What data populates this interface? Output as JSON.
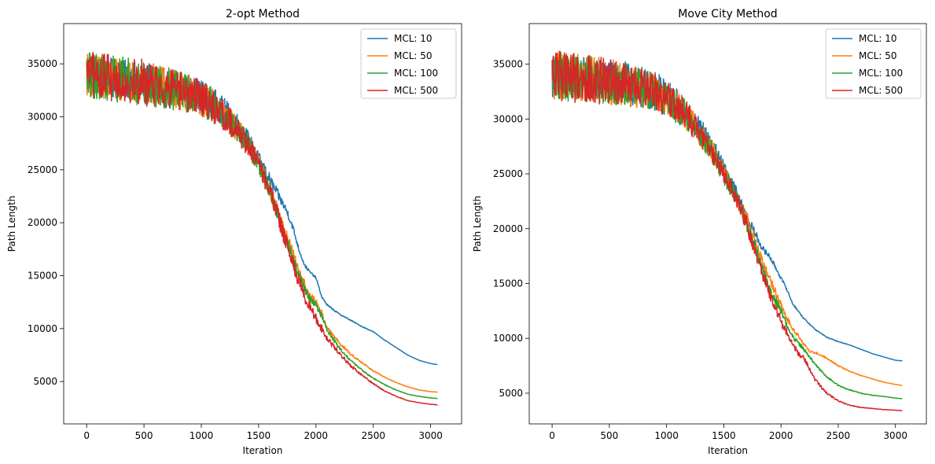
{
  "chart_data": [
    {
      "type": "line",
      "title": "2-opt Method",
      "xlabel": "Iteration",
      "ylabel": "Path Length",
      "xlim": [
        -200,
        3270
      ],
      "ylim": [
        1000,
        38800
      ],
      "xticks": [
        0,
        500,
        1000,
        1500,
        2000,
        2500,
        3000
      ],
      "yticks": [
        5000,
        10000,
        15000,
        20000,
        25000,
        30000,
        35000
      ],
      "grid": false,
      "legend_position": "top-right",
      "series": [
        {
          "name": "MCL: 10",
          "color": "#1f77b4",
          "x": [
            0,
            100,
            200,
            300,
            400,
            500,
            600,
            700,
            800,
            900,
            1000,
            1100,
            1200,
            1300,
            1400,
            1500,
            1600,
            1700,
            1750,
            1800,
            1850,
            1900,
            1950,
            2000,
            2050,
            2100,
            2200,
            2300,
            2400,
            2500,
            2600,
            2700,
            2800,
            2900,
            3000,
            3060
          ],
          "y": [
            34000,
            33800,
            33700,
            33500,
            33400,
            33200,
            33000,
            32700,
            32500,
            32300,
            32000,
            31300,
            30500,
            29500,
            28000,
            26000,
            24000,
            22000,
            21000,
            19500,
            17500,
            16000,
            15300,
            14800,
            13000,
            12200,
            11400,
            10800,
            10200,
            9700,
            8900,
            8200,
            7500,
            7000,
            6700,
            6600
          ],
          "amp": [
            1900,
            1900,
            1900,
            1900,
            1900,
            1900,
            1900,
            1800,
            1800,
            1700,
            1600,
            1500,
            1300,
            1100,
            900,
            700,
            600,
            450,
            400,
            300,
            200,
            150,
            120,
            100,
            90,
            80,
            60,
            50,
            40,
            30,
            20,
            15,
            10,
            10,
            10,
            5
          ]
        },
        {
          "name": "MCL: 50",
          "color": "#ff7f0e",
          "x": [
            0,
            100,
            200,
            300,
            400,
            500,
            600,
            700,
            800,
            900,
            1000,
            1100,
            1200,
            1300,
            1400,
            1500,
            1600,
            1700,
            1800,
            1850,
            1900,
            1950,
            2000,
            2050,
            2100,
            2200,
            2300,
            2400,
            2500,
            2600,
            2700,
            2800,
            2900,
            3000,
            3060
          ],
          "y": [
            34000,
            33800,
            33700,
            33500,
            33400,
            33200,
            33000,
            32700,
            32400,
            32200,
            31800,
            31000,
            30000,
            29000,
            27500,
            25500,
            23000,
            20000,
            17000,
            15500,
            14200,
            13000,
            12500,
            11500,
            10000,
            8700,
            7600,
            6800,
            6000,
            5400,
            4900,
            4500,
            4200,
            4050,
            4000
          ],
          "amp": [
            2000,
            2000,
            2000,
            2000,
            2000,
            2000,
            2000,
            1900,
            1900,
            1800,
            1700,
            1600,
            1400,
            1200,
            1000,
            900,
            800,
            700,
            600,
            500,
            450,
            400,
            350,
            300,
            200,
            150,
            100,
            80,
            60,
            40,
            30,
            20,
            15,
            10,
            5
          ]
        },
        {
          "name": "MCL: 100",
          "color": "#2ca02c",
          "x": [
            0,
            100,
            200,
            300,
            400,
            500,
            600,
            700,
            800,
            900,
            1000,
            1100,
            1200,
            1300,
            1400,
            1500,
            1600,
            1700,
            1800,
            1850,
            1900,
            1950,
            2000,
            2050,
            2100,
            2200,
            2300,
            2400,
            2500,
            2600,
            2700,
            2800,
            2900,
            3000,
            3060
          ],
          "y": [
            34000,
            33800,
            33700,
            33500,
            33400,
            33200,
            33000,
            32700,
            32400,
            32200,
            31800,
            31000,
            30000,
            29000,
            27500,
            25500,
            23000,
            19500,
            16500,
            15000,
            13800,
            12800,
            12200,
            11200,
            9800,
            8200,
            7000,
            6100,
            5300,
            4700,
            4200,
            3800,
            3600,
            3450,
            3400
          ],
          "amp": [
            2200,
            2200,
            2200,
            2200,
            2200,
            2200,
            2100,
            2000,
            1900,
            1800,
            1700,
            1600,
            1400,
            1200,
            1000,
            900,
            800,
            700,
            600,
            500,
            450,
            400,
            350,
            300,
            200,
            150,
            100,
            80,
            60,
            40,
            30,
            20,
            15,
            10,
            5
          ]
        },
        {
          "name": "MCL: 500",
          "color": "#d62728",
          "x": [
            0,
            100,
            200,
            300,
            400,
            500,
            600,
            700,
            800,
            900,
            1000,
            1100,
            1200,
            1300,
            1400,
            1500,
            1600,
            1700,
            1800,
            1850,
            1900,
            1950,
            2000,
            2050,
            2100,
            2200,
            2300,
            2400,
            2500,
            2600,
            2700,
            2800,
            2900,
            3000,
            3060
          ],
          "y": [
            34000,
            33800,
            33700,
            33500,
            33400,
            33200,
            33000,
            32700,
            32400,
            32200,
            31800,
            31000,
            30000,
            29000,
            27500,
            25500,
            23000,
            19500,
            16000,
            14500,
            13000,
            12000,
            11000,
            10000,
            9000,
            7700,
            6500,
            5600,
            4800,
            4100,
            3600,
            3200,
            3000,
            2850,
            2800
          ],
          "amp": [
            2200,
            2200,
            2200,
            2200,
            2200,
            2200,
            2100,
            2000,
            1900,
            1800,
            1800,
            1700,
            1500,
            1300,
            1100,
            1000,
            900,
            800,
            700,
            600,
            550,
            500,
            450,
            400,
            300,
            200,
            150,
            100,
            80,
            50,
            30,
            20,
            15,
            10,
            5
          ]
        }
      ]
    },
    {
      "type": "line",
      "title": "Move City Method",
      "xlabel": "Iteration",
      "ylabel": "Path Length",
      "xlim": [
        -200,
        3270
      ],
      "ylim": [
        2200,
        38700
      ],
      "xticks": [
        0,
        500,
        1000,
        1500,
        2000,
        2500,
        3000
      ],
      "yticks": [
        5000,
        10000,
        15000,
        20000,
        25000,
        30000,
        35000
      ],
      "grid": false,
      "legend_position": "top-right",
      "series": [
        {
          "name": "MCL: 10",
          "color": "#1f77b4",
          "x": [
            0,
            100,
            200,
            300,
            400,
            500,
            600,
            700,
            800,
            900,
            1000,
            1100,
            1200,
            1300,
            1400,
            1500,
            1600,
            1700,
            1800,
            1850,
            1900,
            1950,
            2000,
            2050,
            2100,
            2200,
            2300,
            2400,
            2500,
            2600,
            2700,
            2800,
            2900,
            3000,
            3060
          ],
          "y": [
            34000,
            34000,
            33800,
            33700,
            33500,
            33400,
            33200,
            33000,
            32800,
            32500,
            32000,
            31200,
            30000,
            29000,
            27500,
            25500,
            23500,
            21000,
            19000,
            18000,
            17500,
            16500,
            15500,
            14500,
            13200,
            11800,
            10800,
            10100,
            9700,
            9400,
            9000,
            8600,
            8300,
            8000,
            7950
          ],
          "amp": [
            2000,
            2000,
            2000,
            2000,
            2000,
            2000,
            2200,
            2000,
            1900,
            1800,
            1700,
            1500,
            1300,
            1100,
            900,
            700,
            600,
            500,
            400,
            300,
            250,
            200,
            150,
            120,
            90,
            70,
            50,
            40,
            30,
            20,
            15,
            10,
            10,
            5,
            5
          ]
        },
        {
          "name": "MCL: 50",
          "color": "#ff7f0e",
          "x": [
            0,
            100,
            200,
            300,
            400,
            500,
            600,
            700,
            800,
            900,
            1000,
            1100,
            1200,
            1300,
            1400,
            1500,
            1600,
            1700,
            1800,
            1850,
            1900,
            1950,
            2000,
            2050,
            2100,
            2200,
            2250,
            2300,
            2400,
            2500,
            2600,
            2700,
            2800,
            2900,
            3000,
            3060
          ],
          "y": [
            34000,
            34000,
            33800,
            33700,
            33500,
            33400,
            33200,
            33000,
            32700,
            32400,
            31800,
            31000,
            30000,
            28500,
            27000,
            25000,
            23000,
            21000,
            18000,
            16500,
            15500,
            14200,
            13000,
            11800,
            11000,
            9500,
            8800,
            8700,
            8200,
            7500,
            7000,
            6600,
            6300,
            6000,
            5800,
            5700
          ],
          "amp": [
            2200,
            2200,
            2200,
            2200,
            2200,
            2100,
            2000,
            1900,
            1800,
            1700,
            1600,
            1500,
            1300,
            1100,
            1000,
            900,
            800,
            700,
            600,
            500,
            450,
            400,
            350,
            300,
            250,
            150,
            120,
            100,
            80,
            60,
            40,
            30,
            20,
            15,
            10,
            5
          ]
        },
        {
          "name": "MCL: 100",
          "color": "#2ca02c",
          "x": [
            0,
            100,
            200,
            300,
            400,
            500,
            600,
            700,
            800,
            900,
            1000,
            1100,
            1200,
            1300,
            1400,
            1500,
            1600,
            1700,
            1800,
            1850,
            1900,
            1950,
            2000,
            2050,
            2100,
            2200,
            2300,
            2400,
            2500,
            2600,
            2700,
            2800,
            2900,
            3000,
            3060
          ],
          "y": [
            34000,
            34000,
            33800,
            33700,
            33500,
            33400,
            33200,
            33000,
            32700,
            32400,
            31800,
            31000,
            30000,
            28500,
            27000,
            25000,
            23000,
            20500,
            17500,
            16000,
            14500,
            13500,
            12500,
            11200,
            10200,
            9000,
            7600,
            6500,
            5700,
            5300,
            5000,
            4800,
            4700,
            4550,
            4500
          ],
          "amp": [
            2400,
            2400,
            2300,
            2200,
            2200,
            2100,
            2000,
            1900,
            1800,
            1700,
            1600,
            1500,
            1300,
            1100,
            1000,
            900,
            800,
            700,
            600,
            500,
            450,
            400,
            350,
            300,
            250,
            150,
            100,
            80,
            60,
            40,
            30,
            20,
            15,
            10,
            5
          ]
        },
        {
          "name": "MCL: 500",
          "color": "#d62728",
          "x": [
            0,
            100,
            200,
            300,
            400,
            500,
            600,
            700,
            800,
            900,
            1000,
            1100,
            1200,
            1300,
            1400,
            1500,
            1600,
            1700,
            1800,
            1850,
            1900,
            1950,
            2000,
            2050,
            2100,
            2150,
            2200,
            2300,
            2400,
            2500,
            2600,
            2700,
            2800,
            2900,
            3000,
            3060
          ],
          "y": [
            34000,
            34000,
            33800,
            33700,
            33500,
            33400,
            33200,
            33000,
            32700,
            32400,
            31800,
            31000,
            30000,
            28500,
            27000,
            25000,
            23000,
            20500,
            17000,
            15500,
            14000,
            12800,
            11500,
            10500,
            9500,
            8600,
            8200,
            6200,
            5000,
            4300,
            3900,
            3700,
            3600,
            3500,
            3450,
            3400
          ],
          "amp": [
            2400,
            2400,
            2300,
            2200,
            2200,
            2100,
            2000,
            1900,
            1800,
            1700,
            1600,
            1500,
            1300,
            1100,
            1000,
            900,
            800,
            700,
            600,
            550,
            500,
            450,
            400,
            350,
            300,
            250,
            200,
            150,
            100,
            60,
            40,
            30,
            20,
            15,
            10,
            5
          ]
        }
      ]
    }
  ]
}
